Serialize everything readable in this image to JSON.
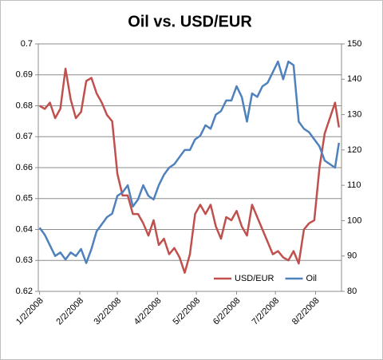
{
  "chart_data": {
    "type": "line",
    "title": "Oil vs. USD/EUR",
    "x": [
      "1/2/2008",
      "1/6/2008",
      "1/10/2008",
      "1/14/2008",
      "1/18/2008",
      "1/22/2008",
      "1/26/2008",
      "1/30/2008",
      "2/3/2008",
      "2/7/2008",
      "2/11/2008",
      "2/15/2008",
      "2/19/2008",
      "2/23/2008",
      "2/27/2008",
      "3/2/2008",
      "3/6/2008",
      "3/10/2008",
      "3/14/2008",
      "3/18/2008",
      "3/22/2008",
      "3/26/2008",
      "3/30/2008",
      "4/3/2008",
      "4/7/2008",
      "4/11/2008",
      "4/15/2008",
      "4/19/2008",
      "4/23/2008",
      "4/27/2008",
      "5/1/2008",
      "5/5/2008",
      "5/9/2008",
      "5/13/2008",
      "5/17/2008",
      "5/21/2008",
      "5/25/2008",
      "5/29/2008",
      "6/2/2008",
      "6/6/2008",
      "6/10/2008",
      "6/14/2008",
      "6/18/2008",
      "6/22/2008",
      "6/26/2008",
      "6/30/2008",
      "7/4/2008",
      "7/8/2008",
      "7/12/2008",
      "7/16/2008",
      "7/20/2008",
      "7/24/2008",
      "7/28/2008",
      "8/1/2008",
      "8/5/2008",
      "8/9/2008",
      "8/13/2008",
      "8/17/2008",
      "8/20/2008"
    ],
    "series": [
      {
        "name": "USD/EUR",
        "color": "#c0504d",
        "axis": "y",
        "values": [
          0.68,
          0.679,
          0.681,
          0.676,
          0.679,
          0.692,
          0.682,
          0.676,
          0.678,
          0.688,
          0.689,
          0.684,
          0.681,
          0.677,
          0.675,
          0.658,
          0.651,
          0.651,
          0.645,
          0.645,
          0.642,
          0.638,
          0.643,
          0.635,
          0.637,
          0.632,
          0.634,
          0.631,
          0.626,
          0.632,
          0.645,
          0.648,
          0.645,
          0.648,
          0.641,
          0.637,
          0.644,
          0.643,
          0.646,
          0.641,
          0.638,
          0.648,
          0.644,
          0.64,
          0.636,
          0.632,
          0.633,
          0.631,
          0.63,
          0.633,
          0.629,
          0.64,
          0.642,
          0.643,
          0.66,
          0.671,
          0.676,
          0.681,
          0.673
        ]
      },
      {
        "name": "Oil",
        "color": "#4f81bd",
        "axis": "y2",
        "values": [
          98,
          96,
          93,
          90,
          91,
          89,
          91,
          90,
          92,
          88,
          92,
          97,
          99,
          101,
          102,
          107,
          108,
          110,
          104,
          106,
          110,
          107,
          106,
          110,
          113,
          115,
          116,
          118,
          120,
          120,
          123,
          124,
          127,
          126,
          130,
          131,
          134,
          134,
          138,
          135,
          128,
          136,
          135,
          138,
          139,
          142,
          145,
          140,
          145,
          144,
          128,
          126,
          125,
          123,
          121,
          117,
          116,
          115,
          122
        ]
      }
    ],
    "xlim": [
      "1/1/2008",
      "8/22/2008"
    ],
    "xticks": [
      "1/2/2008",
      "2/2/2008",
      "3/2/2008",
      "4/2/2008",
      "5/2/2008",
      "6/2/2008",
      "7/2/2008",
      "8/2/2008"
    ],
    "ylim": [
      0.62,
      0.7
    ],
    "yticks": [
      0.62,
      0.63,
      0.64,
      0.65,
      0.66,
      0.67,
      0.68,
      0.69,
      0.7
    ],
    "y2lim": [
      80,
      150
    ],
    "y2ticks": [
      80,
      90,
      100,
      110,
      120,
      130,
      140,
      150
    ],
    "grid": true,
    "legend": "lower right"
  }
}
